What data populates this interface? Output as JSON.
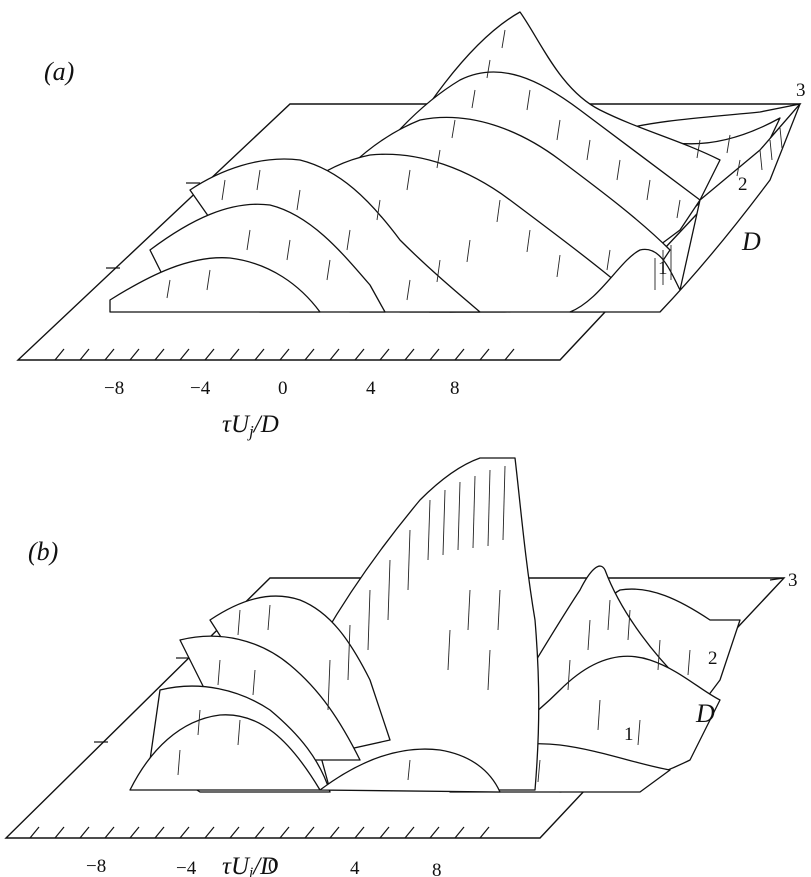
{
  "figure": {
    "panels": [
      {
        "id": "a",
        "label": "(a)",
        "x_ticks": [
          "−8",
          "−4",
          "0",
          "4",
          "8"
        ],
        "x_label": "τU",
        "x_label_sub": "j",
        "x_label_tail": "/D",
        "depth_ticks": [
          "1",
          "2",
          "3"
        ],
        "depth_label": "D"
      },
      {
        "id": "b",
        "label": "(b)",
        "x_ticks": [
          "−8",
          "−4",
          "0",
          "4",
          "8"
        ],
        "x_label": "τU",
        "x_label_sub": "j",
        "x_label_tail": "/D",
        "depth_ticks": [
          "1",
          "2",
          "3"
        ],
        "depth_label": "D"
      }
    ]
  }
}
